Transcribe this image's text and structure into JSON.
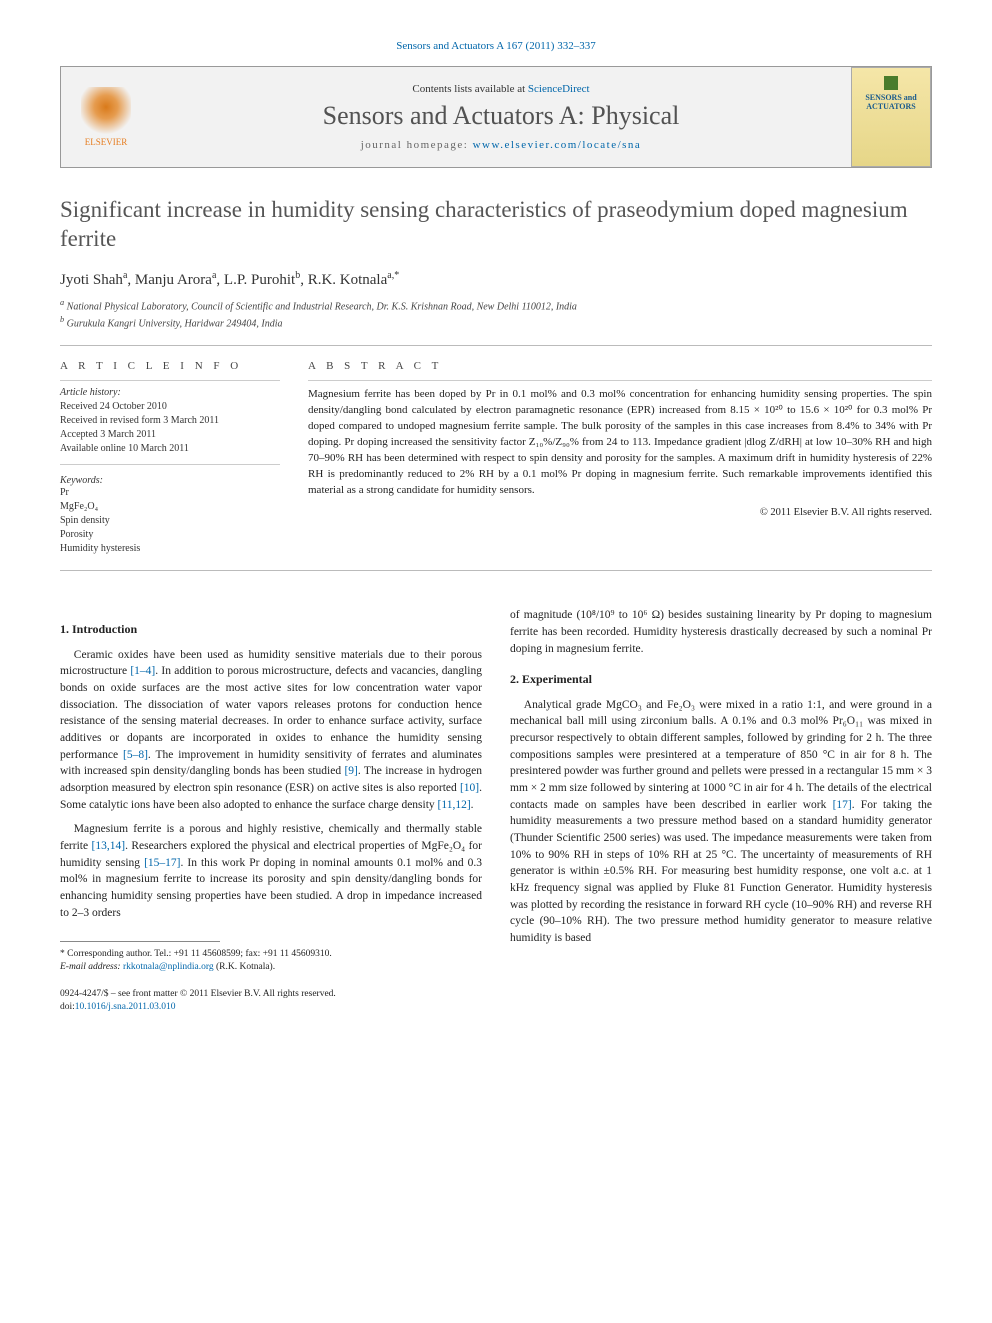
{
  "top_link": "Sensors and Actuators A 167 (2011) 332–337",
  "header": {
    "contents_prefix": "Contents lists available at ",
    "contents_link": "ScienceDirect",
    "journal_name": "Sensors and Actuators A: Physical",
    "homepage_prefix": "journal homepage: ",
    "homepage_url": "www.elsevier.com/locate/sna",
    "publisher_label": "ELSEVIER",
    "cover_text": "SENSORS and ACTUATORS"
  },
  "title": "Significant increase in humidity sensing characteristics of praseodymium doped magnesium ferrite",
  "authors_html": "Jyoti Shah<sup>a</sup>, Manju Arora<sup>a</sup>, L.P. Purohit<sup>b</sup>, R.K. Kotnala<sup>a,*</sup>",
  "affiliations": {
    "a": "National Physical Laboratory, Council of Scientific and Industrial Research, Dr. K.S. Krishnan Road, New Delhi 110012, India",
    "b": "Gurukula Kangri University, Haridwar 249404, India"
  },
  "article_info": {
    "heading": "A R T I C L E   I N F O",
    "history_label": "Article history:",
    "received": "Received 24 October 2010",
    "revised": "Received in revised form 3 March 2011",
    "accepted": "Accepted 3 March 2011",
    "online": "Available online 10 March 2011",
    "keywords_label": "Keywords:",
    "keywords": [
      "Pr",
      "MgFe₂O₄",
      "Spin density",
      "Porosity",
      "Humidity hysteresis"
    ]
  },
  "abstract": {
    "heading": "A B S T R A C T",
    "text": "Magnesium ferrite has been doped by Pr in 0.1 mol% and 0.3 mol% concentration for enhancing humidity sensing properties. The spin density/dangling bond calculated by electron paramagnetic resonance (EPR) increased from 8.15 × 10²⁰ to 15.6 × 10²⁰ for 0.3 mol% Pr doped compared to undoped magnesium ferrite sample. The bulk porosity of the samples in this case increases from 8.4% to 34% with Pr doping. Pr doping increased the sensitivity factor Z₁₀%/Z₉₀% from 24 to 113. Impedance gradient |dlog Z/dRH| at low 10–30% RH and high 70–90% RH has been determined with respect to spin density and porosity for the samples. A maximum drift in humidity hysteresis of 22% RH is predominantly reduced to 2% RH by a 0.1 mol% Pr doping in magnesium ferrite. Such remarkable improvements identified this material as a strong candidate for humidity sensors.",
    "copyright": "© 2011 Elsevier B.V. All rights reserved."
  },
  "sections": {
    "intro_heading": "1. Introduction",
    "intro_p1": "Ceramic oxides have been used as humidity sensitive materials due to their porous microstructure [1–4]. In addition to porous microstructure, defects and vacancies, dangling bonds on oxide surfaces are the most active sites for low concentration water vapor dissociation. The dissociation of water vapors releases protons for conduction hence resistance of the sensing material decreases. In order to enhance surface activity, surface additives or dopants are incorporated in oxides to enhance the humidity sensing performance [5–8]. The improvement in humidity sensitivity of ferrates and aluminates with increased spin density/dangling bonds has been studied [9]. The increase in hydrogen adsorption measured by electron spin resonance (ESR) on active sites is also reported [10]. Some catalytic ions have been also adopted to enhance the surface charge density [11,12].",
    "intro_p2": "Magnesium ferrite is a porous and highly resistive, chemically and thermally stable ferrite [13,14]. Researchers explored the physical and electrical properties of MgFe₂O₄ for humidity sensing [15–17]. In this work Pr doping in nominal amounts 0.1 mol% and 0.3 mol% in magnesium ferrite to increase its porosity and spin density/dangling bonds for enhancing humidity sensing properties have been studied. A drop in impedance increased to 2–3 orders",
    "col2_top": "of magnitude (10⁸/10⁹ to 10⁶ Ω) besides sustaining linearity by Pr doping to magnesium ferrite has been recorded. Humidity hysteresis drastically decreased by such a nominal Pr doping in magnesium ferrite.",
    "exp_heading": "2. Experimental",
    "exp_p1": "Analytical grade MgCO₃ and Fe₂O₃ were mixed in a ratio 1:1, and were ground in a mechanical ball mill using zirconium balls. A 0.1% and 0.3 mol% Pr₆O₁₁ was mixed in precursor respectively to obtain different samples, followed by grinding for 2 h. The three compositions samples were presintered at a temperature of 850 °C in air for 8 h. The presintered powder was further ground and pellets were pressed in a rectangular 15 mm × 3 mm × 2 mm size followed by sintering at 1000 °C in air for 4 h. The details of the electrical contacts made on samples have been described in earlier work [17]. For taking the humidity measurements a two pressure method based on a standard humidity generator (Thunder Scientific 2500 series) was used. The impedance measurements were taken from 10% to 90% RH in steps of 10% RH at 25 °C. The uncertainty of measurements of RH generator is within ±0.5% RH. For measuring best humidity response, one volt a.c. at 1 kHz frequency signal was applied by Fluke 81 Function Generator. Humidity hysteresis was plotted by recording the resistance in forward RH cycle (10–90% RH) and reverse RH cycle (90–10% RH). The two pressure method humidity generator to measure relative humidity is based"
  },
  "footnote": {
    "corr": "* Corresponding author. Tel.: +91 11 45608599; fax: +91 11 45609310.",
    "email_label": "E-mail address: ",
    "email": "rkkotnala@nplindia.org",
    "email_paren": " (R.K. Kotnala)."
  },
  "bottom": {
    "front_matter": "0924-4247/$ – see front matter © 2011 Elsevier B.V. All rights reserved.",
    "doi_prefix": "doi:",
    "doi": "10.1016/j.sna.2011.03.010"
  }
}
